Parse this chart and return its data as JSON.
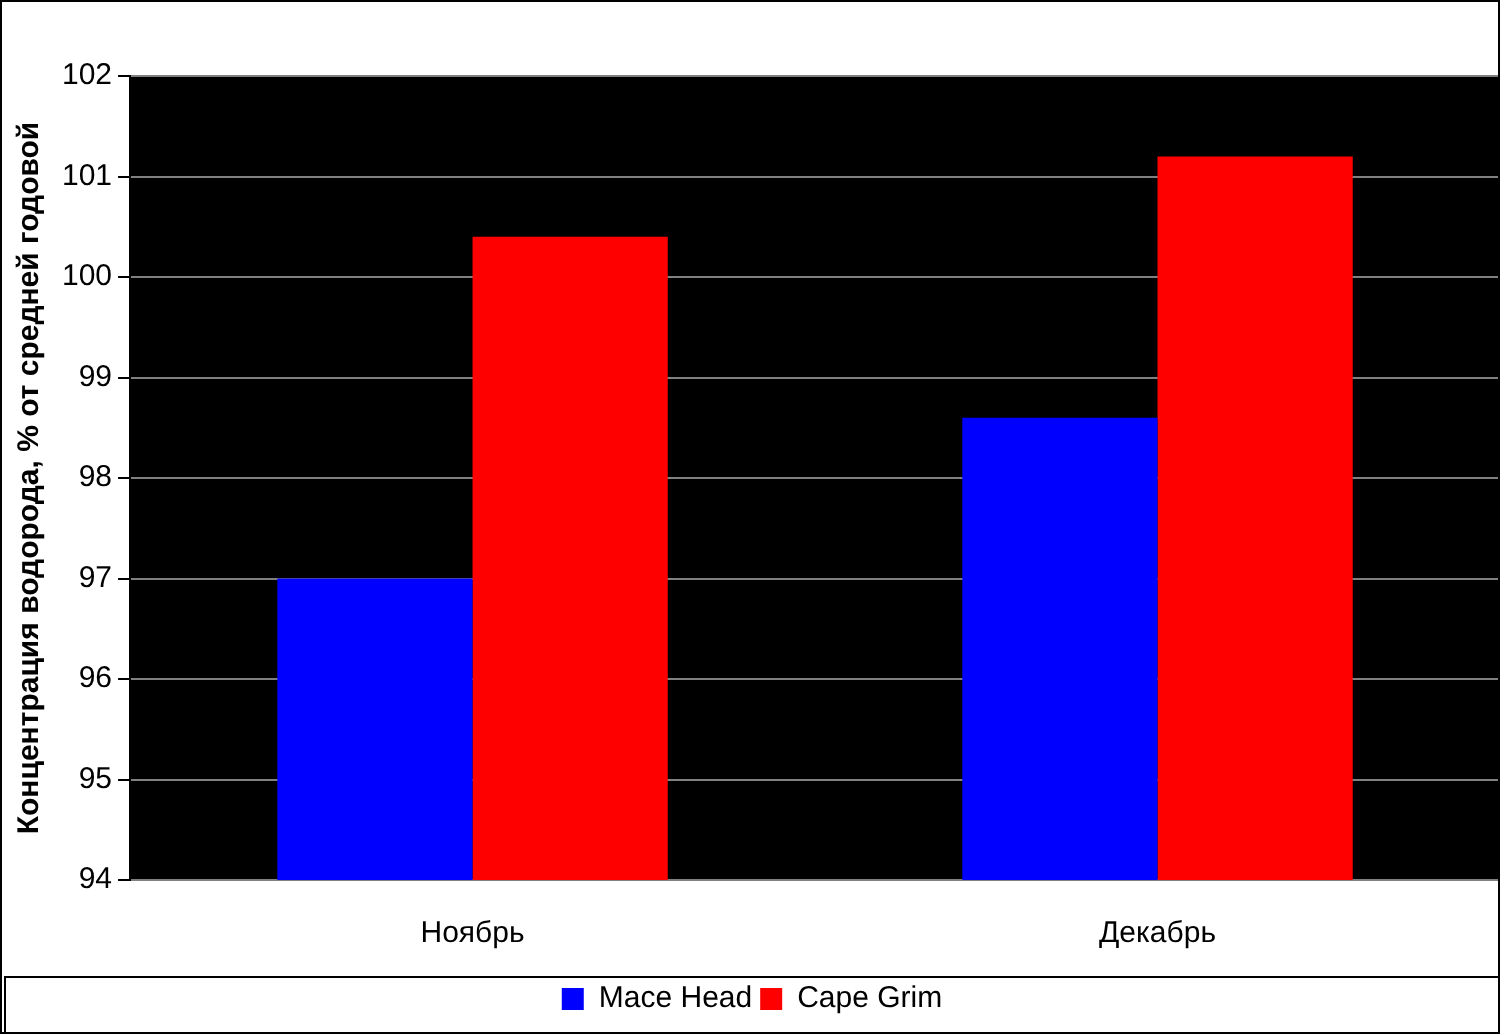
{
  "chart_data": {
    "type": "bar",
    "ylabel": "Концентрация водорода, % от средней годовой",
    "categories": [
      "Ноябрь",
      "Декабрь"
    ],
    "series": [
      {
        "name": "Mace Head",
        "color": "#0000ff",
        "values": [
          97.0,
          98.6
        ]
      },
      {
        "name": "Cape Grim",
        "color": "#ff0000",
        "values": [
          100.4,
          101.2
        ]
      }
    ],
    "ylim": [
      94,
      102
    ],
    "yticks": [
      94,
      95,
      96,
      97,
      98,
      99,
      100,
      101,
      102
    ],
    "grid": "y",
    "legend": "bottom"
  }
}
